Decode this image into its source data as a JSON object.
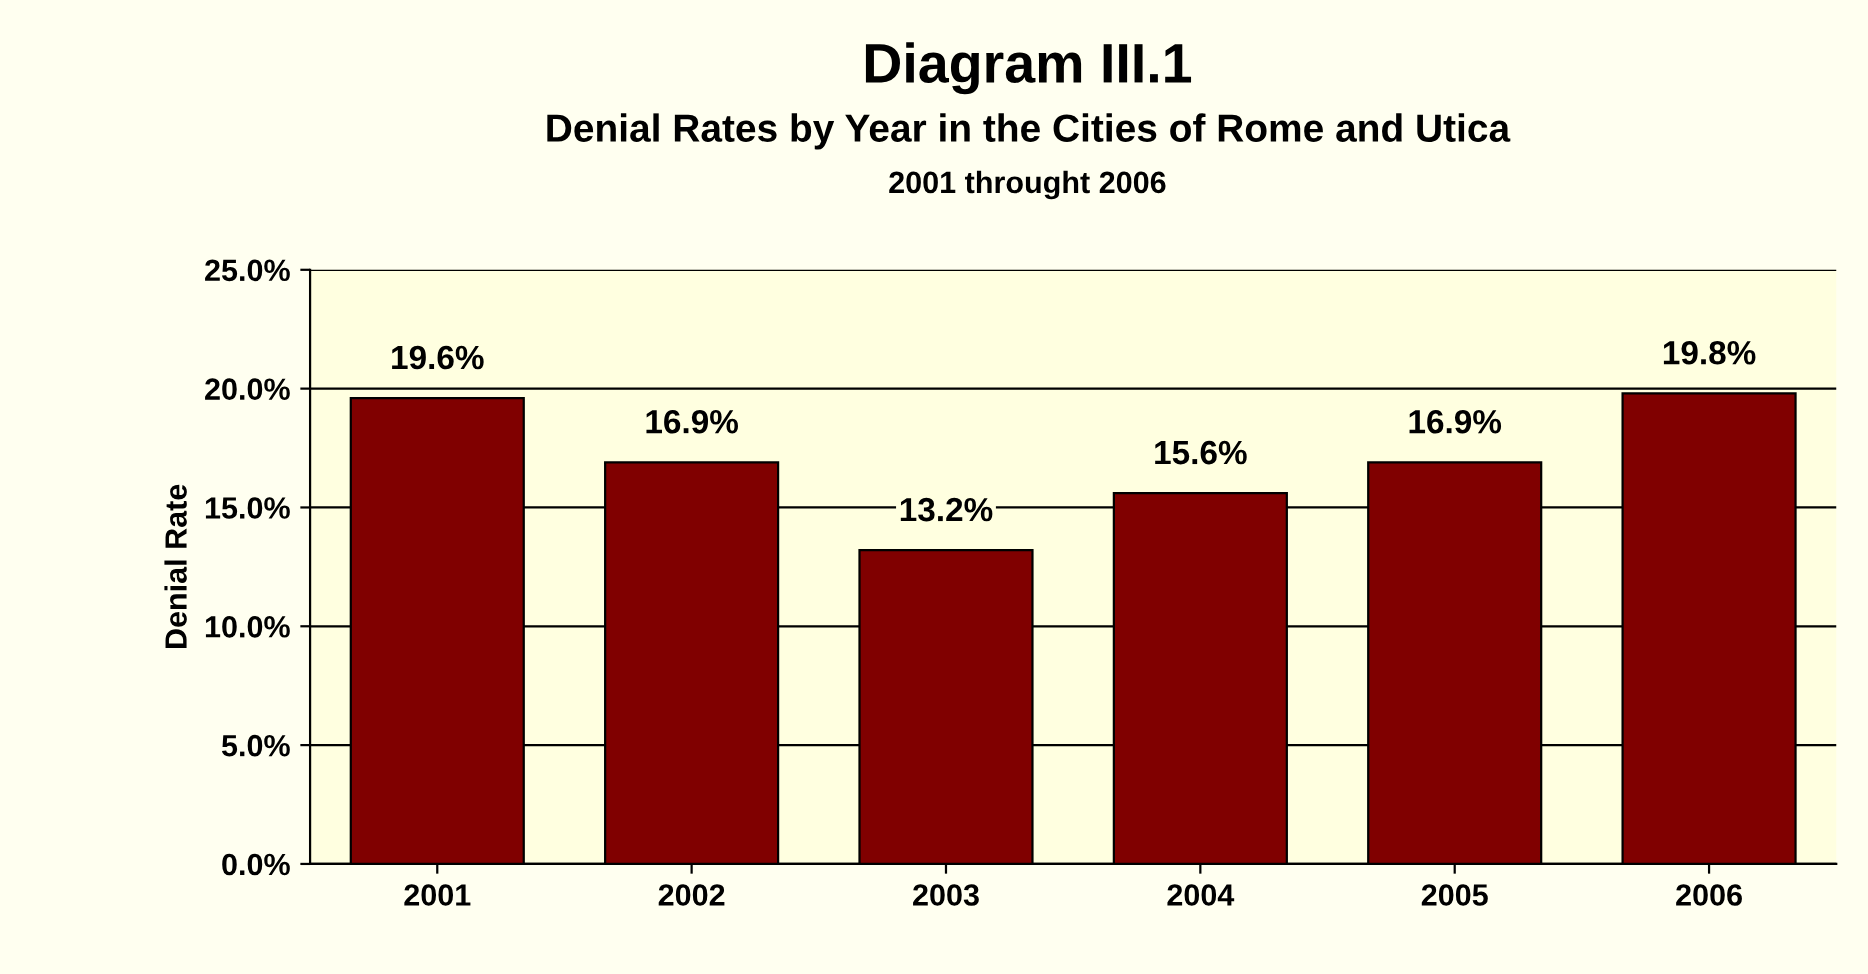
{
  "chart_data": {
    "type": "bar",
    "title": "Diagram III.1",
    "subtitle": "Denial Rates by Year in the Cities of Rome and Utica",
    "annotations": [
      "2001 throught 2006"
    ],
    "ylabel": "Denial Rate",
    "categories": [
      "2001",
      "2002",
      "2003",
      "2004",
      "2005",
      "2006"
    ],
    "values": [
      19.6,
      16.9,
      13.2,
      15.6,
      16.9,
      19.8
    ],
    "value_labels": [
      "19.6%",
      "16.9%",
      "13.2%",
      "15.6%",
      "16.9%",
      "19.8%"
    ],
    "color": "#800000",
    "ylim": [
      0,
      25
    ],
    "yticks": [
      {
        "value": 0,
        "label": "0.0%"
      },
      {
        "value": 5,
        "label": "5.0%"
      },
      {
        "value": 10,
        "label": "10.0%"
      },
      {
        "value": 15,
        "label": "15.0%"
      },
      {
        "value": 20,
        "label": "20.0%"
      },
      {
        "value": 25,
        "label": "25.0%"
      }
    ],
    "grid": "y"
  }
}
